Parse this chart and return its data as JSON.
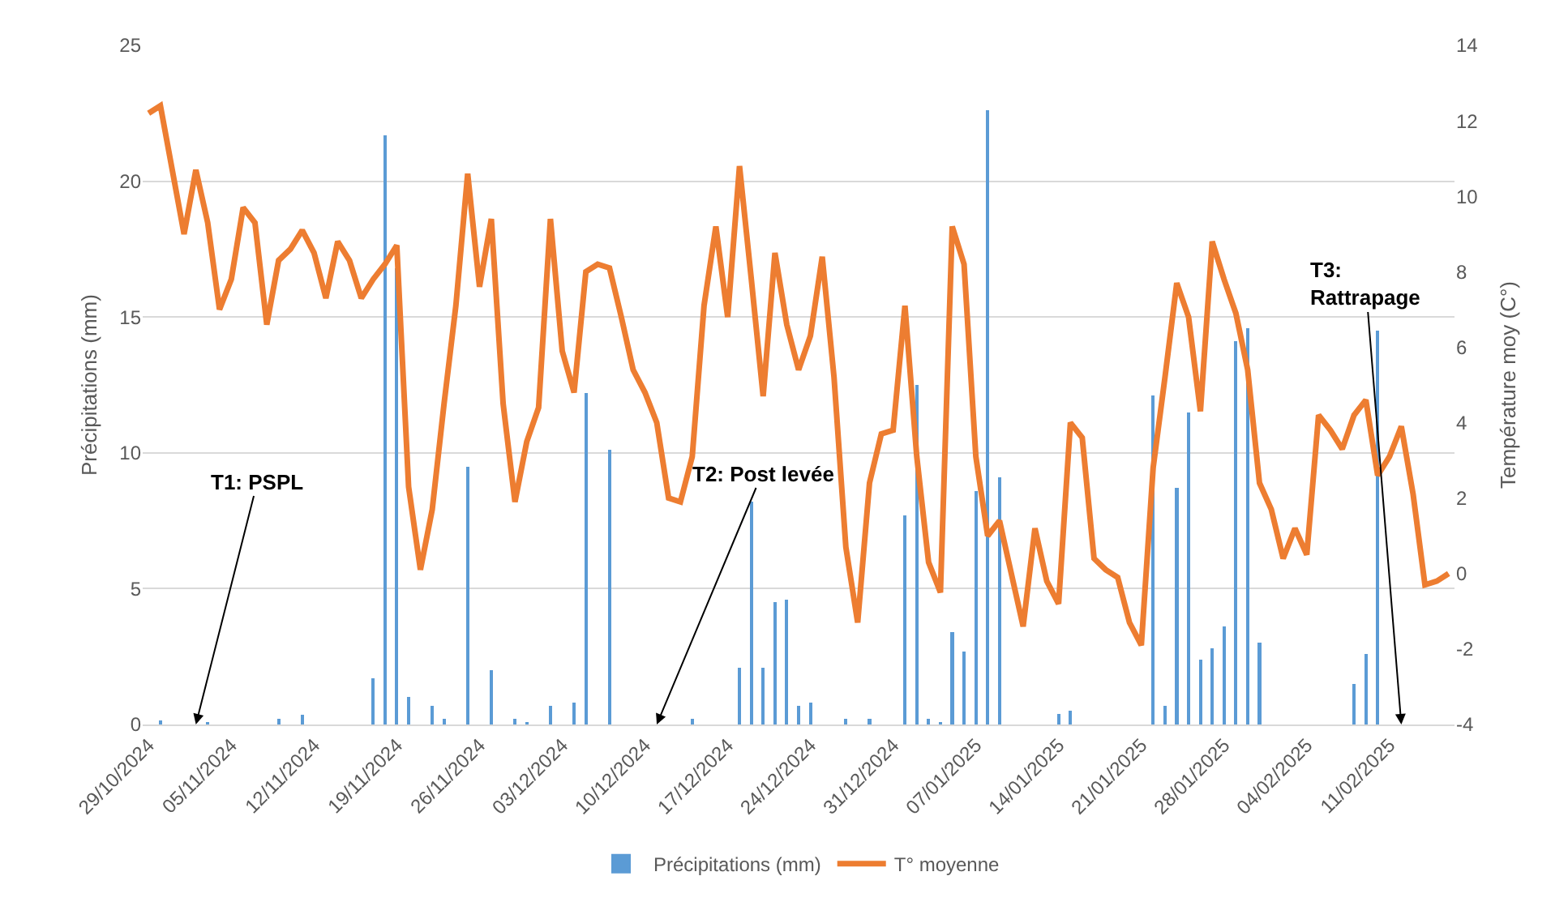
{
  "chart_data": {
    "type": "bar",
    "ylabel": "Précipitations (mm)",
    "y2label": "Température moy (C°)",
    "x": [
      "2024-10-29",
      "2024-10-30",
      "2024-10-31",
      "2024-11-01",
      "2024-11-02",
      "2024-11-03",
      "2024-11-04",
      "2024-11-05",
      "2024-11-06",
      "2024-11-07",
      "2024-11-08",
      "2024-11-09",
      "2024-11-10",
      "2024-11-11",
      "2024-11-12",
      "2024-11-13",
      "2024-11-14",
      "2024-11-15",
      "2024-11-16",
      "2024-11-17",
      "2024-11-18",
      "2024-11-19",
      "2024-11-20",
      "2024-11-21",
      "2024-11-22",
      "2024-11-23",
      "2024-11-24",
      "2024-11-25",
      "2024-11-26",
      "2024-11-27",
      "2024-11-28",
      "2024-11-29",
      "2024-11-30",
      "2024-12-01",
      "2024-12-02",
      "2024-12-03",
      "2024-12-04",
      "2024-12-05",
      "2024-12-06",
      "2024-12-07",
      "2024-12-08",
      "2024-12-09",
      "2024-12-10",
      "2024-12-11",
      "2024-12-12",
      "2024-12-13",
      "2024-12-14",
      "2024-12-15",
      "2024-12-16",
      "2024-12-17",
      "2024-12-18",
      "2024-12-19",
      "2024-12-20",
      "2024-12-21",
      "2024-12-22",
      "2024-12-23",
      "2024-12-24",
      "2024-12-25",
      "2024-12-26",
      "2024-12-27",
      "2024-12-28",
      "2024-12-29",
      "2024-12-30",
      "2024-12-31",
      "2025-01-01",
      "2025-01-02",
      "2025-01-03",
      "2025-01-04",
      "2025-01-05",
      "2025-01-06",
      "2025-01-07",
      "2025-01-08",
      "2025-01-09",
      "2025-01-10",
      "2025-01-11",
      "2025-01-12",
      "2025-01-13",
      "2025-01-14",
      "2025-01-15",
      "2025-01-16",
      "2025-01-17",
      "2025-01-18",
      "2025-01-19",
      "2025-01-20",
      "2025-01-21",
      "2025-01-22",
      "2025-01-23",
      "2025-01-24",
      "2025-01-25",
      "2025-01-26",
      "2025-01-27",
      "2025-01-28",
      "2025-01-29",
      "2025-01-30",
      "2025-01-31",
      "2025-02-01",
      "2025-02-02",
      "2025-02-03",
      "2025-02-04",
      "2025-02-05",
      "2025-02-06",
      "2025-02-07",
      "2025-02-08",
      "2025-02-09",
      "2025-02-10",
      "2025-02-11",
      "2025-02-12",
      "2025-02-13",
      "2025-02-14",
      "2025-02-15",
      "2025-02-16"
    ],
    "series": [
      {
        "name": "Précipitations (mm)",
        "color": "#5b9bd5",
        "values": [
          0,
          0.15,
          0,
          0,
          0,
          0.1,
          0,
          0,
          0,
          0,
          0,
          0.2,
          0,
          0.35,
          0,
          0,
          0,
          0,
          0,
          1.7,
          21.7,
          16.8,
          1.0,
          0,
          0.7,
          0.2,
          0,
          9.5,
          0,
          2.0,
          0,
          0.2,
          0.1,
          0,
          0.7,
          0,
          0.8,
          12.2,
          0,
          10.1,
          0,
          0,
          0,
          0,
          0,
          0,
          0.2,
          0,
          0,
          0,
          2.1,
          8.2,
          2.1,
          4.5,
          4.6,
          0.7,
          0.8,
          0,
          0,
          0.2,
          0,
          0.2,
          0,
          0,
          7.7,
          12.5,
          0.2,
          0.1,
          3.4,
          2.7,
          8.6,
          22.6,
          9.1,
          0,
          0,
          0,
          0,
          0.4,
          0.5,
          0,
          0,
          0,
          0,
          0,
          0,
          12.1,
          0.7,
          8.7,
          11.5,
          2.4,
          2.8,
          3.6,
          14.1,
          14.6,
          3.0,
          0,
          0,
          0,
          0,
          0,
          0,
          0,
          1.5,
          2.6,
          14.5,
          0,
          0,
          0,
          0,
          0,
          0
        ]
      },
      {
        "name": "T° moyenne",
        "type": "line",
        "axis": "y2",
        "color": "#ed7d31",
        "values": [
          12.2,
          12.4,
          10.7,
          9.0,
          10.7,
          9.3,
          7.0,
          7.8,
          9.7,
          9.3,
          6.6,
          8.3,
          8.6,
          9.1,
          8.5,
          7.3,
          8.8,
          8.3,
          7.3,
          7.8,
          8.2,
          8.7,
          2.3,
          0.1,
          1.7,
          4.5,
          7.1,
          10.6,
          7.6,
          9.4,
          4.5,
          1.9,
          3.5,
          4.4,
          9.4,
          5.9,
          4.8,
          8.0,
          8.2,
          8.1,
          6.8,
          5.4,
          4.8,
          4.0,
          2.0,
          1.9,
          3.1,
          7.1,
          9.2,
          6.8,
          10.8,
          7.8,
          4.7,
          8.5,
          6.6,
          5.4,
          6.3,
          8.4,
          5.2,
          0.7,
          -1.3,
          2.4,
          3.7,
          3.8,
          7.1,
          3.1,
          0.3,
          -0.5,
          9.2,
          8.2,
          3.1,
          1.0,
          1.4,
          0.0,
          -1.4,
          1.2,
          -0.2,
          -0.8,
          4.0,
          3.6,
          0.4,
          0.1,
          -0.1,
          -1.3,
          -1.9,
          2.8,
          5.2,
          7.7,
          6.8,
          4.3,
          8.8,
          7.8,
          6.9,
          5.4,
          2.4,
          1.7,
          0.4,
          1.2,
          0.5,
          4.2,
          3.8,
          3.3,
          4.2,
          4.6,
          2.6,
          3.1,
          3.9,
          2.1,
          -0.3,
          -0.2,
          0.0
        ]
      }
    ],
    "xlim": [
      "2024-10-28T12:00",
      "2025-02-16T12:00"
    ],
    "xticks": [
      {
        "value": "2024-10-29",
        "label": "29/10/2024"
      },
      {
        "value": "2024-11-05",
        "label": "05/11/2024"
      },
      {
        "value": "2024-11-12",
        "label": "12/11/2024"
      },
      {
        "value": "2024-11-19",
        "label": "19/11/2024"
      },
      {
        "value": "2024-11-26",
        "label": "26/11/2024"
      },
      {
        "value": "2024-12-03",
        "label": "03/12/2024"
      },
      {
        "value": "2024-12-10",
        "label": "10/12/2024"
      },
      {
        "value": "2024-12-17",
        "label": "17/12/2024"
      },
      {
        "value": "2024-12-24",
        "label": "24/12/2024"
      },
      {
        "value": "2024-12-31",
        "label": "31/12/2024"
      },
      {
        "value": "2025-01-07",
        "label": "07/01/2025"
      },
      {
        "value": "2025-01-14",
        "label": "14/01/2025"
      },
      {
        "value": "2025-01-21",
        "label": "21/01/2025"
      },
      {
        "value": "2025-01-28",
        "label": "28/01/2025"
      },
      {
        "value": "2025-02-04",
        "label": "04/02/2025"
      },
      {
        "value": "2025-02-11",
        "label": "11/02/2025"
      }
    ],
    "ylim": [
      0,
      25
    ],
    "yticks": [
      0,
      5,
      10,
      15,
      20,
      25
    ],
    "y2lim": [
      -4,
      14
    ],
    "y2ticks": [
      -4,
      -2,
      0,
      2,
      4,
      6,
      8,
      10,
      12,
      14
    ],
    "grid": "y",
    "legend": "bottom",
    "annotations": [
      {
        "text": "T1: PSPL",
        "x": "2024-11-02",
        "y": 0
      },
      {
        "text": "T2: Post levée",
        "x": "2024-12-11",
        "y": 0
      },
      {
        "text": "T3: Rattrapage",
        "x": "2025-02-12",
        "y": 0
      }
    ]
  }
}
